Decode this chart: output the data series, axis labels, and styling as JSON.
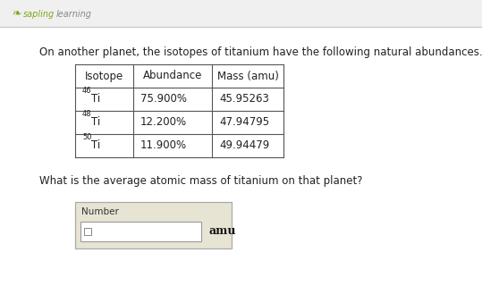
{
  "bg_color": "#ffffff",
  "main_question": "On another planet, the isotopes of titanium have the following natural abundances.",
  "table_headers": [
    "Isotope",
    "Abundance",
    "Mass (amu)"
  ],
  "isotopes": [
    "46",
    "48",
    "50"
  ],
  "abundances": [
    "75.900%",
    "12.200%",
    "11.900%"
  ],
  "masses": [
    "45.95263",
    "47.94795",
    "49.94479"
  ],
  "sub_question": "What is the average atomic mass of titanium on that planet?",
  "input_label": "Number",
  "input_unit": "amu",
  "header_bg": "#f0f0f0",
  "header_line_color": "#cccccc",
  "sapling_color": "#7aaa20",
  "learning_color": "#888888",
  "table_line_color": "#555555",
  "box_bg": "#e8e4d4",
  "box_border": "#aaaaaa",
  "inner_box_border": "#999999",
  "text_color": "#222222",
  "amu_color": "#111111"
}
